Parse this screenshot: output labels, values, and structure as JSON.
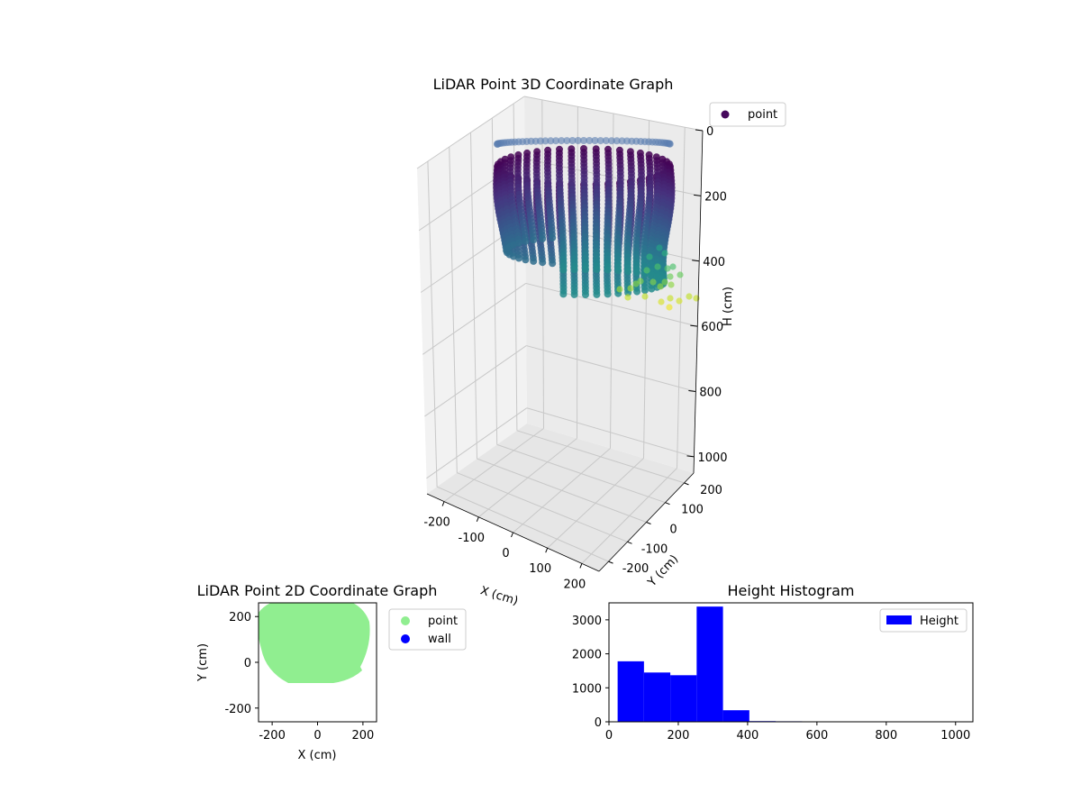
{
  "chart_data": [
    {
      "type": "scatter",
      "projection": "3d",
      "title": "LiDAR Point 3D Coordinate Graph",
      "xlabel": "X (cm)",
      "ylabel": "Y (cm)",
      "zlabel": "H (cm)",
      "xticks": [
        -200,
        -100,
        0,
        100,
        200
      ],
      "yticks": [
        -200,
        -100,
        0,
        100,
        200
      ],
      "zticks": [
        0,
        200,
        400,
        600,
        800,
        1000
      ],
      "xlim": [
        -250,
        250
      ],
      "ylim": [
        -250,
        250
      ],
      "zlim": [
        1050,
        0
      ],
      "zaxis_inverted": true,
      "grid": true,
      "colormap": "viridis",
      "legend": {
        "position": "top-right",
        "entries": [
          {
            "label": "point",
            "color": "#46085c"
          }
        ]
      },
      "series": [
        {
          "name": "point",
          "description": "dense roughly cylindrical shell of points",
          "x_range": [
            -200,
            200
          ],
          "y_range": [
            -100,
            250
          ],
          "h_range": [
            0,
            400
          ]
        }
      ]
    },
    {
      "type": "scatter",
      "title": "LiDAR Point 2D Coordinate Graph",
      "xlabel": "X (cm)",
      "ylabel": "Y (cm)",
      "xticks": [
        -200,
        0,
        200
      ],
      "yticks": [
        -200,
        0,
        200
      ],
      "xlim": [
        -260,
        260
      ],
      "ylim": [
        -260,
        260
      ],
      "legend": {
        "position": "outside-right",
        "entries": [
          {
            "label": "point",
            "color": "#90ee90"
          },
          {
            "label": "wall",
            "color": "#0000ff"
          }
        ]
      },
      "series": [
        {
          "name": "point",
          "color": "#90ee90",
          "x_range": [
            -260,
            230
          ],
          "y_range": [
            -95,
            260
          ]
        },
        {
          "name": "wall",
          "color": "#0000ff",
          "points": []
        }
      ]
    },
    {
      "type": "bar",
      "subtype": "histogram",
      "title": "Height Histogram",
      "xticks": [
        0,
        200,
        400,
        600,
        800,
        1000
      ],
      "yticks": [
        0,
        1000,
        2000,
        3000
      ],
      "xlim": [
        0,
        1050
      ],
      "ylim": [
        0,
        3500
      ],
      "legend": {
        "position": "top-right",
        "entries": [
          {
            "label": "Height",
            "color": "#0000ff"
          }
        ]
      },
      "series": [
        {
          "name": "Height",
          "color": "#0000ff",
          "bin_edges": [
            25,
            101,
            177,
            253,
            329,
            405,
            481,
            557,
            633,
            709,
            785,
            861,
            937,
            1013
          ],
          "values": [
            1780,
            1450,
            1370,
            3390,
            340,
            20,
            15,
            3,
            2,
            2,
            2,
            2,
            2
          ]
        }
      ]
    }
  ]
}
